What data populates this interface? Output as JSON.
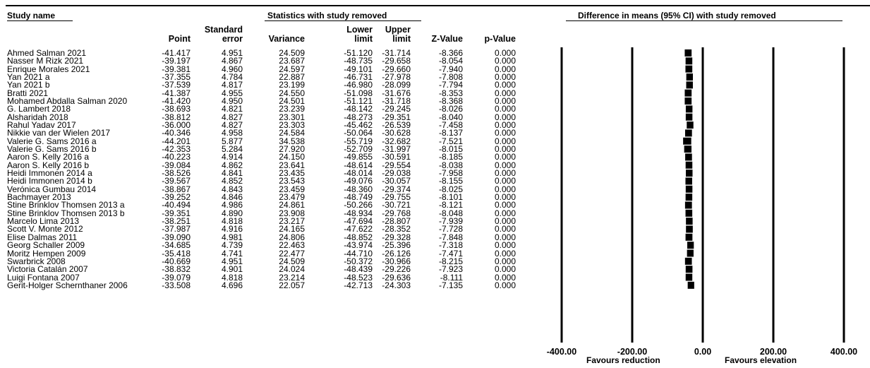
{
  "header": {
    "study_name": "Study name",
    "statistics": "Statistics with study removed",
    "difference": "Difference in means (95% CI) with study removed"
  },
  "columns": {
    "point": "Point",
    "se_line1": "Standard",
    "se_line2": "error",
    "variance": "Variance",
    "lower_line1": "Lower",
    "lower_line2": "limit",
    "upper_line1": "Upper",
    "upper_line2": "limit",
    "z": "Z-Value",
    "p": "p-Value"
  },
  "chart_data": {
    "type": "table",
    "plot_type": "forest",
    "xlim": [
      -400,
      400
    ],
    "xticks": [
      "-400.00",
      "-200.00",
      "0.00",
      "200.00",
      "400.00"
    ],
    "tick_values": [
      -400,
      -200,
      0,
      200,
      400
    ],
    "favours_left": "Favours reduction",
    "favours_right": "Favours elevation",
    "rows": [
      {
        "study": "Ahmed Salman 2021",
        "point": "-41.417",
        "se": "4.951",
        "variance": "24.509",
        "lower": "-51.120",
        "upper": "-31.714",
        "z": "-8.366",
        "p": "0.000"
      },
      {
        "study": "Nasser M Rizk 2021",
        "point": "-39.197",
        "se": "4.867",
        "variance": "23.687",
        "lower": "-48.735",
        "upper": "-29.658",
        "z": "-8.054",
        "p": "0.000"
      },
      {
        "study": "Enrique Morales 2021",
        "point": "-39.381",
        "se": "4.960",
        "variance": "24.597",
        "lower": "-49.101",
        "upper": "-29.660",
        "z": "-7.940",
        "p": "0.000"
      },
      {
        "study": "Yan 2021 a",
        "point": "-37.355",
        "se": "4.784",
        "variance": "22.887",
        "lower": "-46.731",
        "upper": "-27.978",
        "z": "-7.808",
        "p": "0.000"
      },
      {
        "study": "Yan 2021 b",
        "point": "-37.539",
        "se": "4.817",
        "variance": "23.199",
        "lower": "-46.980",
        "upper": "-28.099",
        "z": "-7.794",
        "p": "0.000"
      },
      {
        "study": "Bratti 2021",
        "point": "-41.387",
        "se": "4.955",
        "variance": "24.550",
        "lower": "-51.098",
        "upper": "-31.676",
        "z": "-8.353",
        "p": "0.000"
      },
      {
        "study": "Mohamed Abdalla Salman 2020",
        "point": "-41.420",
        "se": "4.950",
        "variance": "24.501",
        "lower": "-51.121",
        "upper": "-31.718",
        "z": "-8.368",
        "p": "0.000"
      },
      {
        "study": "G. Lambert 2018",
        "point": "-38.693",
        "se": "4.821",
        "variance": "23.239",
        "lower": "-48.142",
        "upper": "-29.245",
        "z": "-8.026",
        "p": "0.000"
      },
      {
        "study": "Alsharidah 2018",
        "point": "-38.812",
        "se": "4.827",
        "variance": "23.301",
        "lower": "-48.273",
        "upper": "-29.351",
        "z": "-8.040",
        "p": "0.000"
      },
      {
        "study": "Rahul Yadav 2017",
        "point": "-36.000",
        "se": "4.827",
        "variance": "23.303",
        "lower": "-45.462",
        "upper": "-26.539",
        "z": "-7.458",
        "p": "0.000"
      },
      {
        "study": "Nikkie van der Wielen 2017",
        "point": "-40.346",
        "se": "4.958",
        "variance": "24.584",
        "lower": "-50.064",
        "upper": "-30.628",
        "z": "-8.137",
        "p": "0.000"
      },
      {
        "study": "Valerie G. Sams 2016 a",
        "point": "-44.201",
        "se": "5.877",
        "variance": "34.538",
        "lower": "-55.719",
        "upper": "-32.682",
        "z": "-7.521",
        "p": "0.000"
      },
      {
        "study": "Valerie G. Sams 2016 b",
        "point": "-42.353",
        "se": "5.284",
        "variance": "27.920",
        "lower": "-52.709",
        "upper": "-31.997",
        "z": "-8.015",
        "p": "0.000"
      },
      {
        "study": "Aaron S. Kelly 2016 a",
        "point": "-40.223",
        "se": "4.914",
        "variance": "24.150",
        "lower": "-49.855",
        "upper": "-30.591",
        "z": "-8.185",
        "p": "0.000"
      },
      {
        "study": "Aaron S. Kelly 2016 b",
        "point": "-39.084",
        "se": "4.862",
        "variance": "23.641",
        "lower": "-48.614",
        "upper": "-29.554",
        "z": "-8.038",
        "p": "0.000"
      },
      {
        "study": "Heidi Immonen 2014 a",
        "point": "-38.526",
        "se": "4.841",
        "variance": "23.435",
        "lower": "-48.014",
        "upper": "-29.038",
        "z": "-7.958",
        "p": "0.000"
      },
      {
        "study": "Heidi Immonen 2014 b",
        "point": "-39.567",
        "se": "4.852",
        "variance": "23.543",
        "lower": "-49.076",
        "upper": "-30.057",
        "z": "-8.155",
        "p": "0.000"
      },
      {
        "study": "Verónica Gumbau 2014",
        "point": "-38.867",
        "se": "4.843",
        "variance": "23.459",
        "lower": "-48.360",
        "upper": "-29.374",
        "z": "-8.025",
        "p": "0.000"
      },
      {
        "study": "Bachmayer 2013",
        "point": "-39.252",
        "se": "4.846",
        "variance": "23.479",
        "lower": "-48.749",
        "upper": "-29.755",
        "z": "-8.101",
        "p": "0.000"
      },
      {
        "study": "Stine Brinklov Thomsen 2013  a",
        "point": "-40.494",
        "se": "4.986",
        "variance": "24.861",
        "lower": "-50.266",
        "upper": "-30.721",
        "z": "-8.121",
        "p": "0.000"
      },
      {
        "study": "Stine Brinklov Thomsen 2013  b",
        "point": "-39.351",
        "se": "4.890",
        "variance": "23.908",
        "lower": "-48.934",
        "upper": "-29.768",
        "z": "-8.048",
        "p": "0.000"
      },
      {
        "study": "Marcelo Lima 2013",
        "point": "-38.251",
        "se": "4.818",
        "variance": "23.217",
        "lower": "-47.694",
        "upper": "-28.807",
        "z": "-7.939",
        "p": "0.000"
      },
      {
        "study": "Scott V. Monte 2012",
        "point": "-37.987",
        "se": "4.916",
        "variance": "24.165",
        "lower": "-47.622",
        "upper": "-28.352",
        "z": "-7.728",
        "p": "0.000"
      },
      {
        "study": "Elise Dalmas 2011",
        "point": "-39.090",
        "se": "4.981",
        "variance": "24.806",
        "lower": "-48.852",
        "upper": "-29.328",
        "z": "-7.848",
        "p": "0.000"
      },
      {
        "study": "Georg Schaller 2009",
        "point": "-34.685",
        "se": "4.739",
        "variance": "22.463",
        "lower": "-43.974",
        "upper": "-25.396",
        "z": "-7.318",
        "p": "0.000"
      },
      {
        "study": "Moritz Hempen 2009",
        "point": "-35.418",
        "se": "4.741",
        "variance": "22.477",
        "lower": "-44.710",
        "upper": "-26.126",
        "z": "-7.471",
        "p": "0.000"
      },
      {
        "study": "Swarbrick 2008",
        "point": "-40.669",
        "se": "4.951",
        "variance": "24.509",
        "lower": "-50.372",
        "upper": "-30.966",
        "z": "-8.215",
        "p": "0.000"
      },
      {
        "study": "Victoria Catalán 2007",
        "point": "-38.832",
        "se": "4.901",
        "variance": "24.024",
        "lower": "-48.439",
        "upper": "-29.226",
        "z": "-7.923",
        "p": "0.000"
      },
      {
        "study": "Luigi Fontana 2007",
        "point": "-39.079",
        "se": "4.818",
        "variance": "23.214",
        "lower": "-48.523",
        "upper": "-29.636",
        "z": "-8.111",
        "p": "0.000"
      },
      {
        "study": "Gerit-Holger Schernthaner 2006",
        "point": "-33.508",
        "se": "4.696",
        "variance": "22.057",
        "lower": "-42.713",
        "upper": "-24.303",
        "z": "-7.135",
        "p": "0.000"
      }
    ]
  }
}
